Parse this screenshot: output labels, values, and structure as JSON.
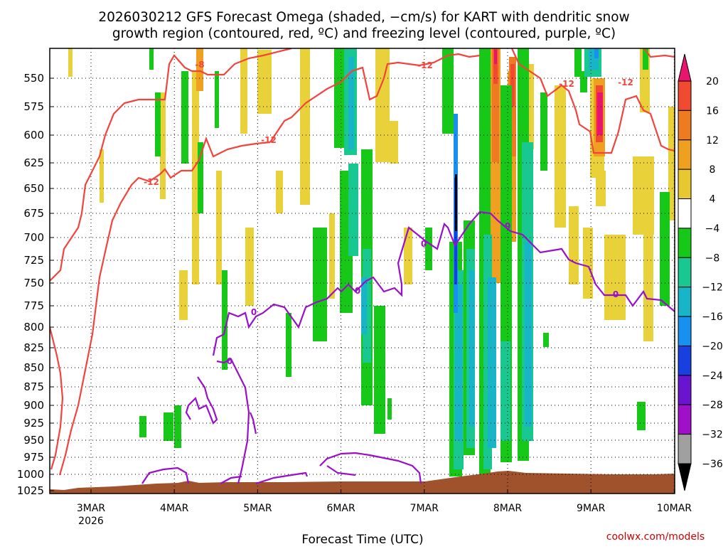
{
  "title_line1": "2026030212 GFS Forecast Omega (shaded, −cm/s) for KART with dendritic snow",
  "title_line2": "growth region (contoured, red, ºC) and freezing level (contoured, purple, ºC)",
  "x_axis_title": "Forecast Time (UTC)",
  "watermark": "coolwx.com/models",
  "year_label": "2026",
  "colors": {
    "dgz_contour": "#f0443c",
    "freezing_contour": "#9a10c8",
    "terrain": "#a0522d",
    "background": "#ffffff"
  },
  "chart_data": {
    "type": "heatmap",
    "variable": "Omega (−cm/s)",
    "x_ticks": [
      "3MAR",
      "4MAR",
      "5MAR",
      "6MAR",
      "7MAR",
      "8MAR",
      "9MAR",
      "10MAR"
    ],
    "y_ticks": [
      550,
      575,
      600,
      625,
      650,
      675,
      700,
      725,
      750,
      775,
      800,
      825,
      850,
      875,
      900,
      925,
      950,
      975,
      1000,
      1025
    ],
    "y_axis": "pressure (hPa), decreasing upward",
    "colorbar": {
      "labels": [
        "20",
        "16",
        "12",
        "8",
        "4",
        "−4",
        "−8",
        "−12",
        "−16",
        "−20",
        "−24",
        "−28",
        "−32",
        "−36"
      ],
      "colors": [
        "#e8146e",
        "#f04a30",
        "#ee7a22",
        "#f0a020",
        "#e8c830",
        "#ffffff",
        "#18c818",
        "#18c890",
        "#18b4c8",
        "#1890f0",
        "#1840e0",
        "#6a14d0",
        "#a010c8",
        "#a0a0a0",
        "#000000"
      ]
    },
    "contours": [
      {
        "name": "dgz",
        "levels": [
          -12,
          -8
        ],
        "color": "#f0443c"
      },
      {
        "name": "freezing level",
        "levels": [
          0
        ],
        "color": "#9a10c8"
      }
    ],
    "contour_labels": [
      "-8",
      "-12",
      "-12",
      "-12",
      "-12",
      "0",
      "0",
      "0",
      "0",
      "0",
      "0"
    ],
    "grid": true
  }
}
